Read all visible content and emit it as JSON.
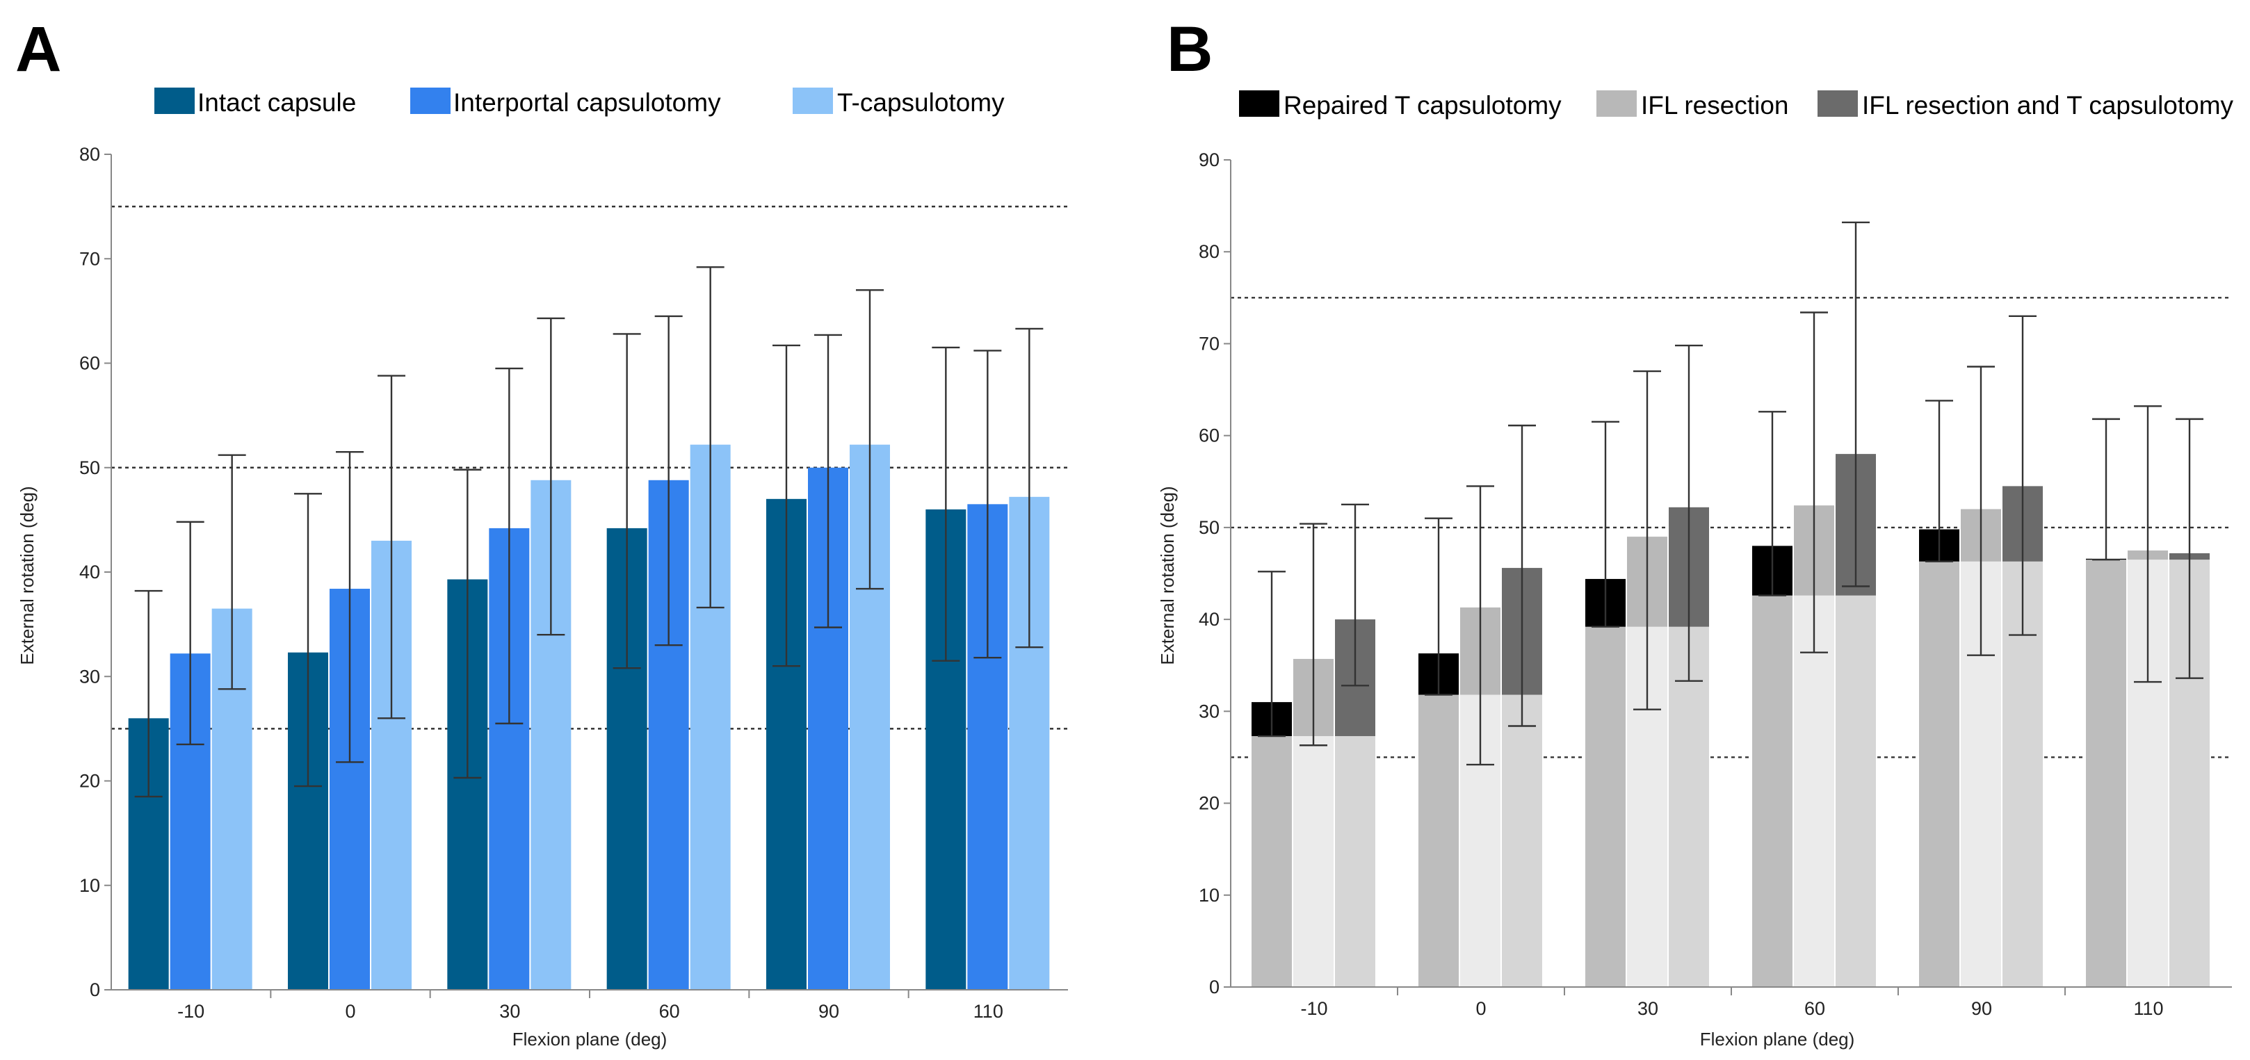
{
  "chart_data": [
    {
      "panel": "A",
      "type": "bar",
      "categories": [
        "-10",
        "0",
        "30",
        "60",
        "90",
        "110"
      ],
      "xlabel": "Flexion plane (deg)",
      "ylabel": "External rotation (deg)",
      "ylim": [
        0,
        80
      ],
      "yticks": [
        "0",
        "10",
        "20",
        "30",
        "40",
        "50",
        "60",
        "70",
        "80"
      ],
      "reference_lines": [
        25,
        50,
        75
      ],
      "legend": [
        "Intact capsule",
        "Interportal capsulotomy",
        "T-capsulotomy"
      ],
      "series": [
        {
          "name": "Intact capsule",
          "color": "#005c8a",
          "values": [
            26,
            32.3,
            39.3,
            44.2,
            47,
            46
          ],
          "err_low": [
            18.5,
            19.5,
            20.3,
            30.8,
            31,
            31.5
          ],
          "err_high": [
            38.2,
            47.5,
            49.8,
            62.8,
            61.7,
            61.5
          ]
        },
        {
          "name": "Interportal capsulotomy",
          "color": "#3381ee",
          "values": [
            32.2,
            38.4,
            44.2,
            48.8,
            50,
            46.5
          ],
          "err_low": [
            23.5,
            21.8,
            25.5,
            33,
            34.7,
            31.8
          ],
          "err_high": [
            44.8,
            51.5,
            59.5,
            64.5,
            62.7,
            61.2
          ]
        },
        {
          "name": "T-capsulotomy",
          "color": "#8cc3f8",
          "values": [
            36.5,
            43,
            48.8,
            52.2,
            52.2,
            47.2
          ],
          "err_low": [
            28.8,
            26,
            34,
            36.6,
            38.4,
            32.8
          ],
          "err_high": [
            51.2,
            58.8,
            64.3,
            69.2,
            67,
            63.3
          ]
        }
      ]
    },
    {
      "panel": "B",
      "type": "bar",
      "categories": [
        "-10",
        "0",
        "30",
        "60",
        "90",
        "110"
      ],
      "xlabel": "Flexion plane (deg)",
      "ylabel": "External rotation (deg)",
      "ylim": [
        0,
        90
      ],
      "yticks": [
        "0",
        "10",
        "20",
        "30",
        "40",
        "50",
        "60",
        "70",
        "80",
        "90"
      ],
      "reference_lines": [
        25,
        50,
        75
      ],
      "legend": [
        "Repaired T capsulotomy",
        "IFL resection",
        "IFL resection and T capsulotomy"
      ],
      "baseline": {
        "name": "Intact capsule",
        "values": [
          27.3,
          31.8,
          39.2,
          42.6,
          46.3,
          46.5
        ],
        "colors": [
          "#bdbdbd",
          "#ebebeb",
          "#d6d6d6"
        ]
      },
      "series": [
        {
          "name": "Repaired T capsulotomy",
          "color": "#000000",
          "values": [
            31,
            36.3,
            44.4,
            48,
            49.8,
            46.6
          ],
          "err_low": [
            27.3,
            31.8,
            39.2,
            42.6,
            46.3,
            46.5
          ],
          "err_high": [
            45.2,
            51,
            61.5,
            62.6,
            63.8,
            61.8
          ]
        },
        {
          "name": "IFL resection",
          "color": "#b8b8b8",
          "values": [
            35.7,
            41.3,
            49,
            52.4,
            52,
            47.5
          ],
          "err_low": [
            26.3,
            24.2,
            30.2,
            36.4,
            36.1,
            33.2
          ],
          "err_high": [
            50.4,
            54.5,
            67,
            73.4,
            67.5,
            63.2
          ]
        },
        {
          "name": "IFL resection and T capsulotomy",
          "color": "#6b6b6b",
          "values": [
            40,
            45.6,
            52.2,
            58,
            54.5,
            47.2
          ],
          "err_low": [
            32.8,
            28.4,
            33.3,
            43.6,
            38.3,
            33.6
          ],
          "err_high": [
            52.5,
            61.1,
            69.8,
            83.2,
            73,
            61.8
          ]
        }
      ]
    }
  ]
}
